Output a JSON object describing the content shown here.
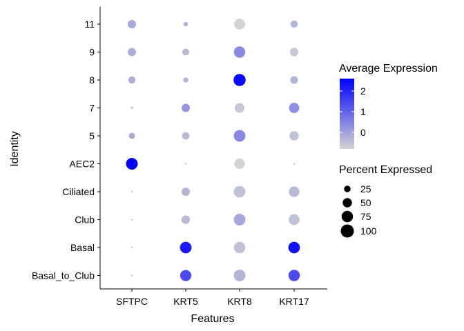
{
  "chart_data": {
    "type": "dot",
    "xlabel": "Features",
    "ylabel": "Identity",
    "features": [
      "SFTPC",
      "KRT5",
      "KRT8",
      "KRT17"
    ],
    "identities": [
      "11",
      "9",
      "8",
      "7",
      "5",
      "AEC2",
      "Ciliated",
      "Club",
      "Basal",
      "Basal_to_Club"
    ],
    "points": [
      {
        "identity": "11",
        "feature": "SFTPC",
        "avg_exp": -0.1,
        "pct": 40
      },
      {
        "identity": "11",
        "feature": "KRT5",
        "avg_exp": -0.3,
        "pct": 12
      },
      {
        "identity": "11",
        "feature": "KRT8",
        "avg_exp": -0.8,
        "pct": 70
      },
      {
        "identity": "11",
        "feature": "KRT17",
        "avg_exp": -0.3,
        "pct": 30
      },
      {
        "identity": "9",
        "feature": "SFTPC",
        "avg_exp": -0.2,
        "pct": 40
      },
      {
        "identity": "9",
        "feature": "KRT5",
        "avg_exp": -0.4,
        "pct": 28
      },
      {
        "identity": "9",
        "feature": "KRT8",
        "avg_exp": 0.4,
        "pct": 75
      },
      {
        "identity": "9",
        "feature": "KRT17",
        "avg_exp": -0.6,
        "pct": 42
      },
      {
        "identity": "8",
        "feature": "SFTPC",
        "avg_exp": -0.2,
        "pct": 30
      },
      {
        "identity": "8",
        "feature": "KRT5",
        "avg_exp": -0.3,
        "pct": 15
      },
      {
        "identity": "8",
        "feature": "KRT8",
        "avg_exp": 2.4,
        "pct": 85
      },
      {
        "identity": "8",
        "feature": "KRT17",
        "avg_exp": -0.3,
        "pct": 35
      },
      {
        "identity": "7",
        "feature": "SFTPC",
        "avg_exp": -0.5,
        "pct": 3
      },
      {
        "identity": "7",
        "feature": "KRT5",
        "avg_exp": 0.2,
        "pct": 40
      },
      {
        "identity": "7",
        "feature": "KRT8",
        "avg_exp": -0.6,
        "pct": 55
      },
      {
        "identity": "7",
        "feature": "KRT17",
        "avg_exp": 0.3,
        "pct": 62
      },
      {
        "identity": "5",
        "feature": "SFTPC",
        "avg_exp": -0.1,
        "pct": 22
      },
      {
        "identity": "5",
        "feature": "KRT5",
        "avg_exp": -0.4,
        "pct": 32
      },
      {
        "identity": "5",
        "feature": "KRT8",
        "avg_exp": 0.4,
        "pct": 80
      },
      {
        "identity": "5",
        "feature": "KRT17",
        "avg_exp": -0.5,
        "pct": 50
      },
      {
        "identity": "AEC2",
        "feature": "SFTPC",
        "avg_exp": 2.6,
        "pct": 80
      },
      {
        "identity": "AEC2",
        "feature": "KRT5",
        "avg_exp": -0.7,
        "pct": 2
      },
      {
        "identity": "AEC2",
        "feature": "KRT8",
        "avg_exp": -0.8,
        "pct": 62
      },
      {
        "identity": "AEC2",
        "feature": "KRT17",
        "avg_exp": -0.7,
        "pct": 2
      },
      {
        "identity": "Ciliated",
        "feature": "SFTPC",
        "avg_exp": -0.6,
        "pct": 2
      },
      {
        "identity": "Ciliated",
        "feature": "KRT5",
        "avg_exp": -0.3,
        "pct": 40
      },
      {
        "identity": "Ciliated",
        "feature": "KRT8",
        "avg_exp": -0.5,
        "pct": 78
      },
      {
        "identity": "Ciliated",
        "feature": "KRT17",
        "avg_exp": -0.4,
        "pct": 65
      },
      {
        "identity": "Club",
        "feature": "SFTPC",
        "avg_exp": -0.6,
        "pct": 2
      },
      {
        "identity": "Club",
        "feature": "KRT5",
        "avg_exp": -0.4,
        "pct": 42
      },
      {
        "identity": "Club",
        "feature": "KRT8",
        "avg_exp": -0.1,
        "pct": 80
      },
      {
        "identity": "Club",
        "feature": "KRT17",
        "avg_exp": -0.5,
        "pct": 68
      },
      {
        "identity": "Basal",
        "feature": "SFTPC",
        "avg_exp": -0.6,
        "pct": 2
      },
      {
        "identity": "Basal",
        "feature": "KRT5",
        "avg_exp": 2.2,
        "pct": 78
      },
      {
        "identity": "Basal",
        "feature": "KRT8",
        "avg_exp": -0.5,
        "pct": 75
      },
      {
        "identity": "Basal",
        "feature": "KRT17",
        "avg_exp": 2.3,
        "pct": 78
      },
      {
        "identity": "Basal_to_Club",
        "feature": "SFTPC",
        "avg_exp": -0.6,
        "pct": 2
      },
      {
        "identity": "Basal_to_Club",
        "feature": "KRT5",
        "avg_exp": 1.4,
        "pct": 72
      },
      {
        "identity": "Basal_to_Club",
        "feature": "KRT8",
        "avg_exp": -0.3,
        "pct": 80
      },
      {
        "identity": "Basal_to_Club",
        "feature": "KRT17",
        "avg_exp": 1.4,
        "pct": 75
      }
    ],
    "color_scale": {
      "low": "#D3D3D3",
      "high": "#0000FF",
      "min": -0.8,
      "max": 2.6
    },
    "color_legend": {
      "title": "Average Expression",
      "ticks": [
        2,
        1,
        0
      ]
    },
    "size_legend": {
      "title": "Percent Expressed",
      "values": [
        25,
        50,
        75,
        100
      ]
    },
    "legend_position": "right",
    "grid": false
  }
}
